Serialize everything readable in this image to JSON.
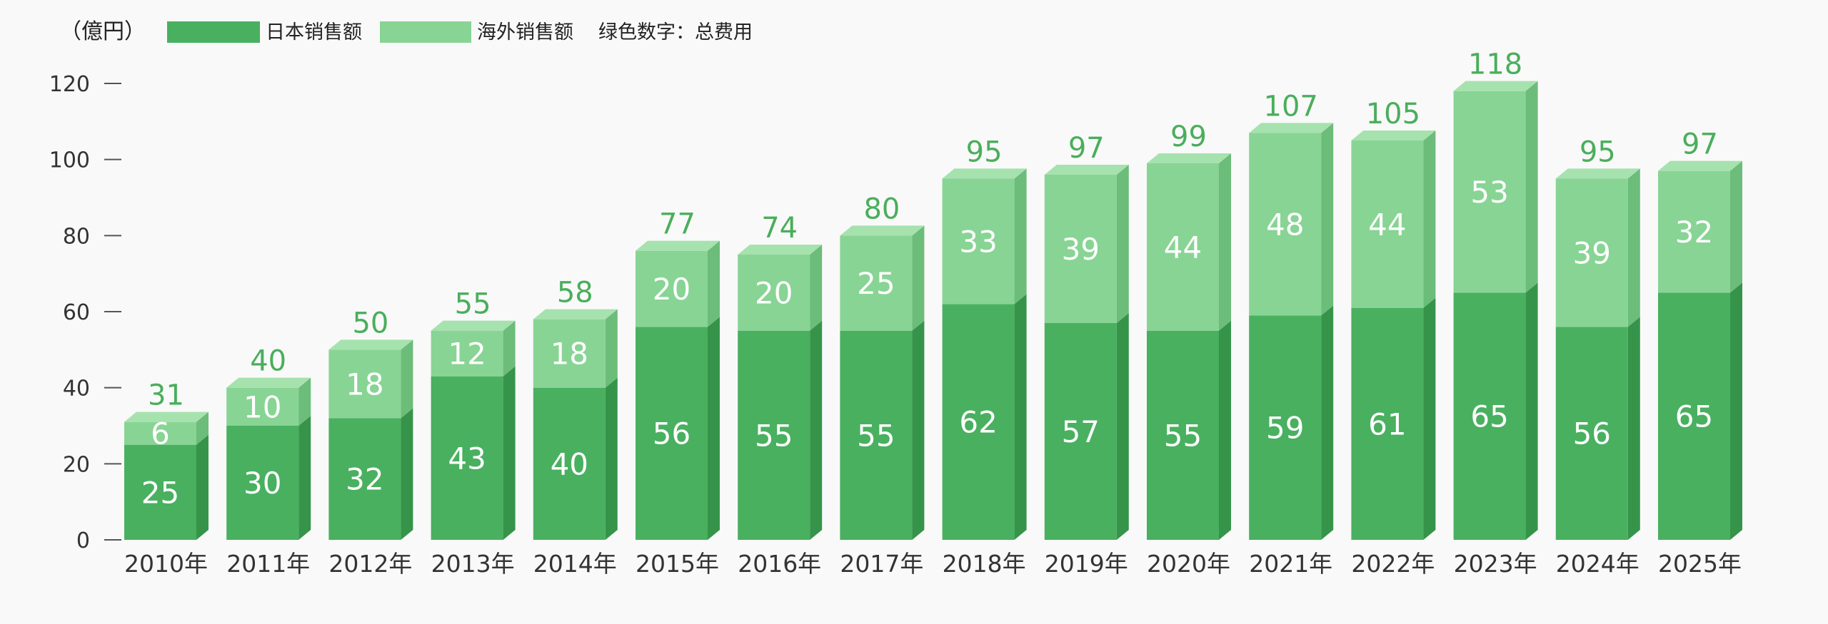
{
  "legend": {
    "unit": "（億円）",
    "japan": "日本销售额",
    "overseas": "海外销售额",
    "note": "绿色数字：总费用"
  },
  "colors": {
    "japan": "#49b060",
    "japan_top": "#5cc070",
    "japan_side": "#36944a",
    "overseas": "#88d494",
    "overseas_top": "#a6e2ae",
    "overseas_side": "#6cbc7a",
    "total_text": "#4aae5c"
  },
  "chart_data": {
    "type": "bar",
    "stacked": true,
    "categories": [
      "2010年",
      "2011年",
      "2012年",
      "2013年",
      "2014年",
      "2015年",
      "2016年",
      "2017年",
      "2018年",
      "2019年",
      "2020年",
      "2021年",
      "2022年",
      "2023年",
      "2024年",
      "2025年"
    ],
    "series": [
      {
        "name": "日本销售额",
        "values": [
          25,
          30,
          32,
          43,
          40,
          56,
          55,
          55,
          62,
          57,
          55,
          59,
          61,
          65,
          56,
          65
        ]
      },
      {
        "name": "海外销售额",
        "values": [
          6,
          10,
          18,
          12,
          18,
          20,
          20,
          25,
          33,
          39,
          44,
          48,
          44,
          53,
          39,
          32
        ]
      }
    ],
    "totals": [
      31,
      40,
      50,
      55,
      58,
      77,
      74,
      80,
      95,
      97,
      99,
      107,
      105,
      118,
      95,
      97
    ],
    "ylim": [
      0,
      120
    ],
    "yticks": [
      0,
      20,
      40,
      60,
      80,
      100,
      120
    ],
    "ylabel": "（億円）"
  }
}
